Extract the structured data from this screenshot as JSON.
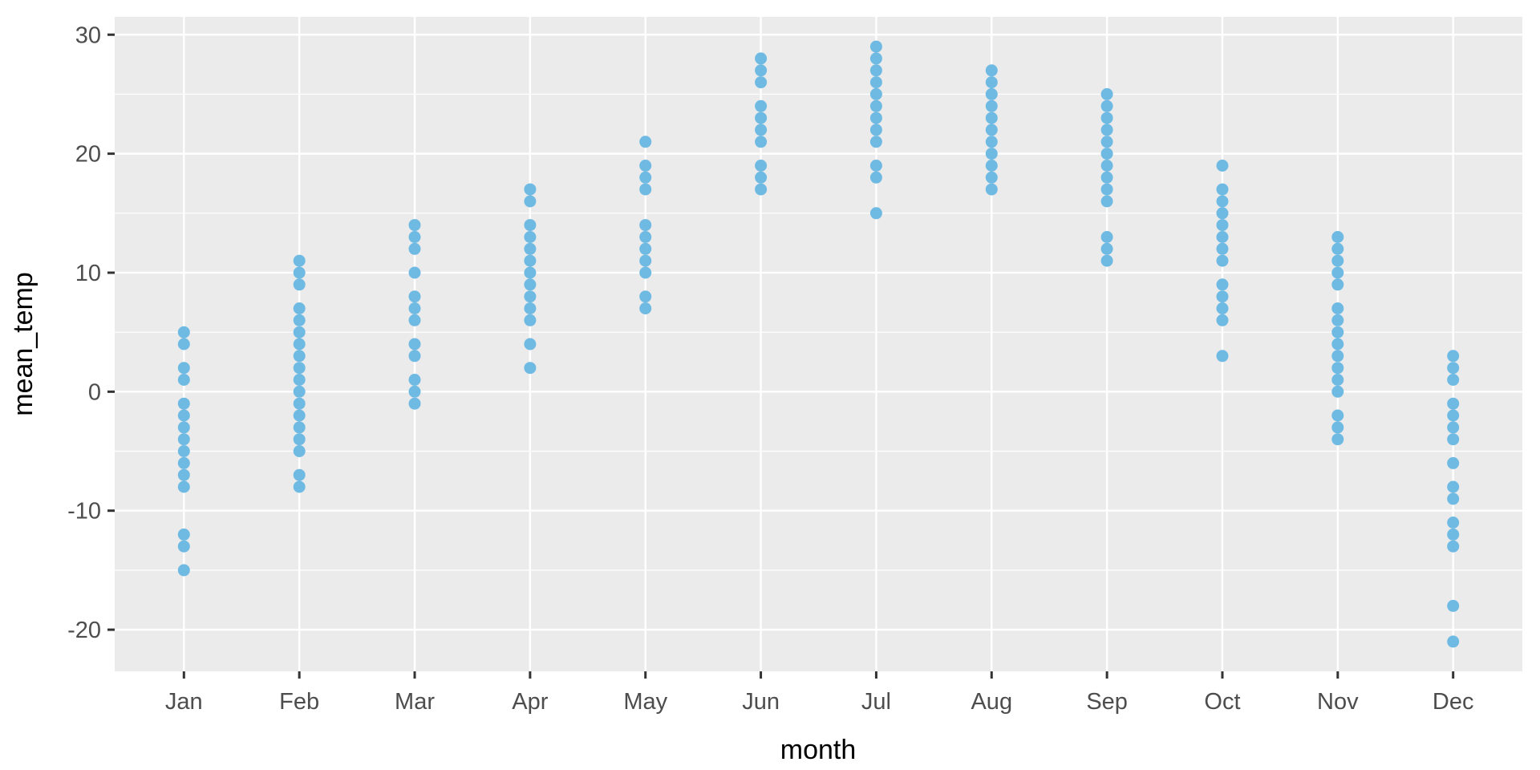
{
  "chart_data": {
    "type": "scatter",
    "title": "",
    "xlabel": "month",
    "ylabel": "mean_temp",
    "categories": [
      "Jan",
      "Feb",
      "Mar",
      "Apr",
      "May",
      "Jun",
      "Jul",
      "Aug",
      "Sep",
      "Oct",
      "Nov",
      "Dec"
    ],
    "series": [
      {
        "name": "mean_temp",
        "values_by_month": [
          [
            5,
            4,
            2,
            1,
            -1,
            -2,
            -3,
            -4,
            -5,
            -6,
            -7,
            -8,
            -12,
            -13,
            -15
          ],
          [
            11,
            10,
            9,
            7,
            6,
            5,
            4,
            3,
            2,
            1,
            0,
            -1,
            -2,
            -3,
            -4,
            -5,
            -7,
            -8
          ],
          [
            14,
            13,
            12,
            10,
            8,
            7,
            6,
            4,
            3,
            1,
            0,
            -1
          ],
          [
            17,
            16,
            14,
            13,
            12,
            11,
            10,
            9,
            8,
            7,
            6,
            4,
            2
          ],
          [
            21,
            19,
            18,
            17,
            14,
            13,
            12,
            11,
            10,
            8,
            7
          ],
          [
            28,
            27,
            26,
            24,
            23,
            22,
            21,
            19,
            18,
            17
          ],
          [
            29,
            28,
            27,
            26,
            25,
            24,
            23,
            22,
            21,
            19,
            18,
            15
          ],
          [
            27,
            26,
            25,
            24,
            23,
            22,
            21,
            20,
            19,
            18,
            17
          ],
          [
            25,
            24,
            23,
            22,
            21,
            20,
            19,
            18,
            17,
            16,
            13,
            12,
            11
          ],
          [
            19,
            17,
            16,
            15,
            14,
            13,
            12,
            11,
            9,
            8,
            7,
            6,
            3
          ],
          [
            13,
            12,
            11,
            10,
            9,
            7,
            6,
            5,
            4,
            3,
            2,
            1,
            0,
            -2,
            -3,
            -4
          ],
          [
            3,
            2,
            1,
            -1,
            -2,
            -3,
            -4,
            -6,
            -8,
            -9,
            -11,
            -12,
            -13,
            -18,
            -21
          ]
        ]
      }
    ],
    "yticks": [
      30,
      20,
      10,
      0,
      -10,
      -20
    ],
    "yticks_minor": [
      25,
      15,
      5,
      -5,
      -15
    ],
    "ylim": [
      -23.5,
      31.5
    ],
    "grid": "on",
    "legend": "none",
    "colors": {
      "point": "#6FBAE3",
      "panel_background": "#EBEBEB",
      "gridline": "#FFFFFF",
      "tick_mark": "#333333",
      "tick_label": "#4D4D4D",
      "axis_title": "#000000",
      "page_background": "#FFFFFF"
    }
  }
}
